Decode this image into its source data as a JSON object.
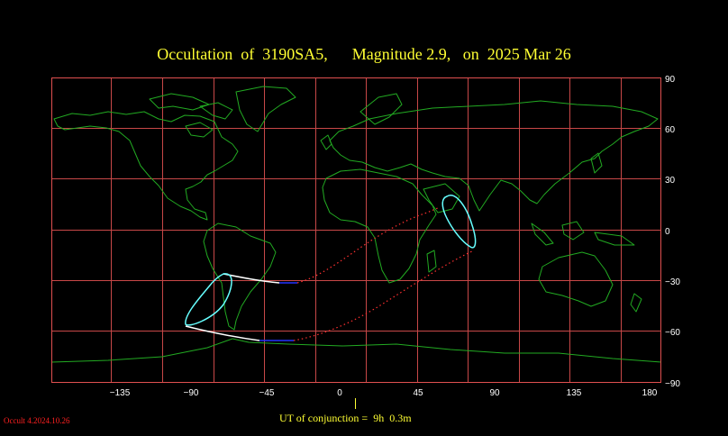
{
  "title": "Occultation  of  3190SA5,      Magnitude 2.9,   on  2025 Mar 26",
  "map": {
    "lon_range": [
      -180,
      180
    ],
    "lat_range": [
      -90,
      90
    ],
    "grid_lon_step": 30,
    "grid_lat_step": 30,
    "y_tick_labels": [
      "90",
      "60",
      "30",
      "0",
      "−30",
      "−60",
      "−90"
    ],
    "x_tick_labels": [
      "−135",
      "−90",
      "−45",
      "0",
      "45",
      "90",
      "135",
      "180"
    ],
    "colors": {
      "background": "#000000",
      "frame": "#e05050",
      "grid": "#c84848",
      "coast": "#22aa22",
      "ellipse": "#66ffff",
      "path_white": "#ffffff",
      "path_blue": "#2233ff",
      "path_dotted": "#ff3030"
    }
  },
  "conjunction": "UT of conjunction =  9h  0.3m",
  "version": "Occult 4.2024.10.26"
}
